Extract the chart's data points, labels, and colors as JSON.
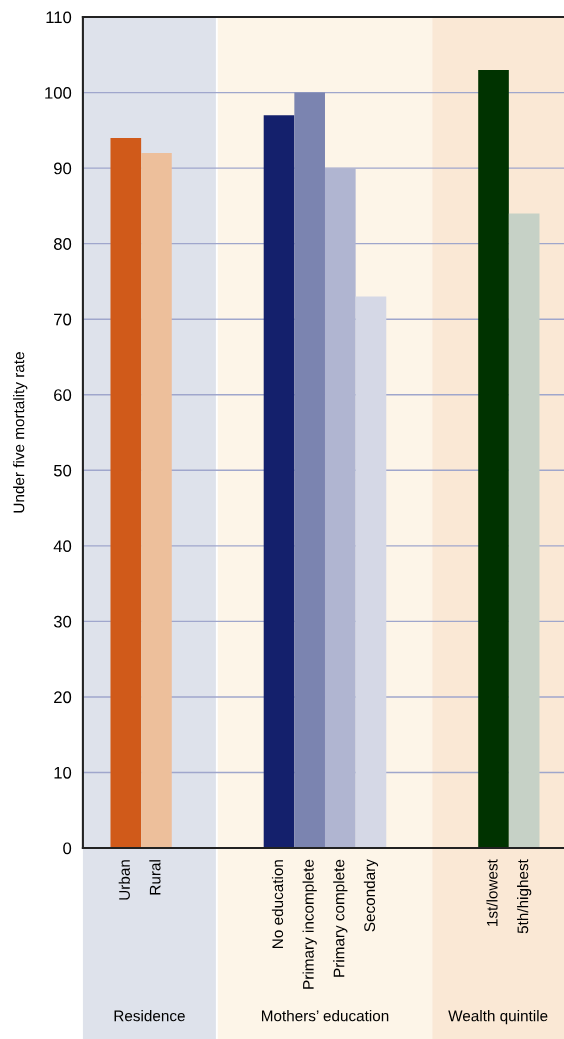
{
  "chart_data": {
    "type": "bar",
    "ylabel": "Under five mortality rate",
    "categories": [
      "Urban",
      "Rural",
      null,
      null,
      null,
      "No education",
      "Primary incomplete",
      "Primary complete",
      "Secondary",
      null,
      null,
      null,
      "1st/lowest",
      "5th/highest"
    ],
    "values": [
      94,
      92,
      null,
      null,
      null,
      97,
      100,
      90,
      73,
      null,
      null,
      null,
      103,
      84
    ],
    "colors": [
      "#d05a1a",
      "#edbf9b",
      null,
      null,
      null,
      "#14206c",
      "#7b84b0",
      "#b0b5d1",
      "#d5d8e6",
      null,
      null,
      null,
      "#003300",
      "#c6d1c6"
    ],
    "ylim": [
      0,
      110
    ],
    "yticks": [
      0,
      10,
      20,
      30,
      40,
      50,
      60,
      70,
      80,
      90,
      100,
      110
    ],
    "grid": "y",
    "annotations": [
      "Residence",
      "Mothers’ education",
      "Wealth quintile"
    ]
  }
}
